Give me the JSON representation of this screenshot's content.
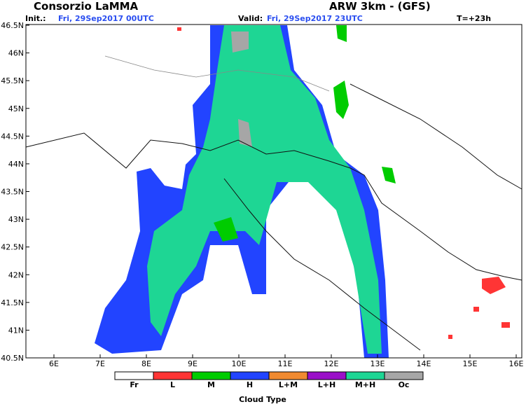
{
  "header": {
    "title": "Consorzio LaMMA",
    "model": "ARW 3km - (GFS)",
    "init_label": "Init.:",
    "init": "Fri, 29Sep2017 00UTC",
    "valid_label": "Valid:",
    "valid": "Fri, 29Sep2017 23UTC",
    "step": "T=+23h"
  },
  "axes": {
    "lat_labels": [
      "46.5N",
      "46N",
      "45.5N",
      "45N",
      "44.5N",
      "44N",
      "43.5N",
      "43N",
      "42.5N",
      "42N",
      "41.5N",
      "41N",
      "40.5N"
    ],
    "lon_labels": [
      "6E",
      "7E",
      "8E",
      "9E",
      "10E",
      "11E",
      "12E",
      "13E",
      "14E",
      "15E",
      "16E"
    ]
  },
  "legend": {
    "title": "Cloud Type",
    "items": [
      {
        "label": "Fr",
        "color": "#ffffff"
      },
      {
        "label": "L",
        "color": "#ff3535"
      },
      {
        "label": "M",
        "color": "#00cc00"
      },
      {
        "label": "H",
        "color": "#2244ff"
      },
      {
        "label": "L+M",
        "color": "#f08a30"
      },
      {
        "label": "L+H",
        "color": "#9a10c8"
      },
      {
        "label": "M+H",
        "color": "#1ed694"
      },
      {
        "label": "Oc",
        "color": "#a6a6a6"
      }
    ]
  }
}
